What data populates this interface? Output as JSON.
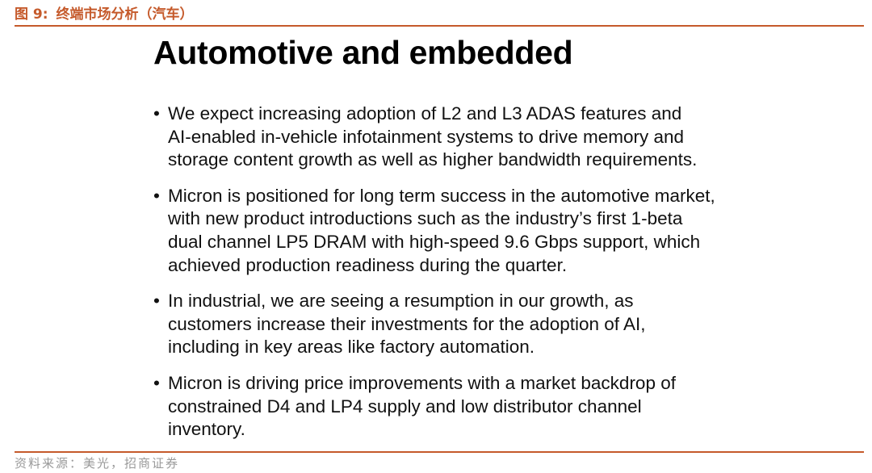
{
  "figure": {
    "number": "图 9:",
    "caption": "终端市场分析（汽车）"
  },
  "slide": {
    "title": "Automotive and embedded",
    "bullets": [
      {
        "lines": [
          "We expect increasing adoption of L2 and L3 ADAS features and",
          "AI-enabled in-vehicle infotainment systems to drive memory and",
          "storage content growth as well as higher bandwidth requirements."
        ]
      },
      {
        "lines": [
          "Micron is positioned for long term success in the automotive market,",
          "with new product introductions such as the industry’s first 1-beta",
          "dual channel LP5 DRAM with high-speed 9.6 Gbps support, which",
          "achieved production readiness during the quarter."
        ]
      },
      {
        "lines": [
          "In industrial, we are seeing a resumption in our growth, as",
          "customers increase their investments for the adoption of AI,",
          "including in key areas like factory automation."
        ]
      },
      {
        "lines": [
          "Micron is driving price improvements with a market backdrop of",
          "constrained D4 and LP4 supply and low distributor channel",
          "inventory."
        ]
      }
    ]
  },
  "source": "资料来源：美光，招商证券",
  "colors": {
    "accent": "#c55a2b",
    "source_text": "#999999"
  }
}
